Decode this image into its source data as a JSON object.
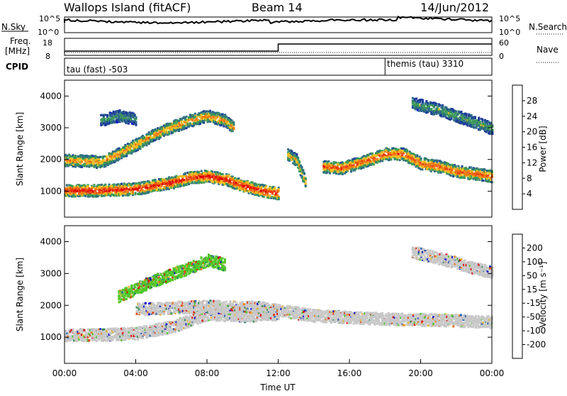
{
  "header": {
    "station": "Wallops Island (fitACF)",
    "beam": "Beam 14",
    "date": "14/Jun/2012"
  },
  "summary": {
    "nsky_label": "N.Sky",
    "nsky_ticks": [
      "10^5",
      "10^0"
    ],
    "nsearch_label": "N.Search",
    "nsearch_ticks": [
      "10^5",
      "10^0"
    ],
    "freq_label": "Freq.",
    "freq_unit": "[MHz]",
    "freq_ticks": [
      "18",
      "8"
    ],
    "nave_label": "Nave",
    "nave_ticks": [
      "60",
      "0"
    ],
    "cpid_label": "CPID",
    "cpid_modes": [
      {
        "name": "tau (fast) -503",
        "start_hour": 0
      },
      {
        "name": "themis (tau) 3310",
        "start_hour": 18
      }
    ]
  },
  "chart_data": [
    {
      "type": "heatmap",
      "panel": "Power",
      "xlabel": "",
      "ylabel": "Slant Range [km]",
      "xlim": [
        0,
        24
      ],
      "ylim": [
        180,
        4500
      ],
      "yticks": [
        1000,
        2000,
        3000,
        4000
      ],
      "colorbar": {
        "label": "Power [dB]",
        "ticks": [
          4,
          8,
          12,
          16,
          20,
          24,
          28
        ],
        "colors": [
          "#0000f0",
          "#1e3c9a",
          "#2e6e86",
          "#3d9a55",
          "#f0c020",
          "#f07c10",
          "#e84210",
          "#e00000"
        ]
      },
      "echo_bands": [
        {
          "name": "near-range layer",
          "points": [
            [
              0,
              1050
            ],
            [
              2,
              1050
            ],
            [
              4,
              1100
            ],
            [
              6,
              1300
            ],
            [
              7,
              1450
            ],
            [
              8,
              1500
            ],
            [
              9,
              1400
            ],
            [
              10,
              1200
            ],
            [
              11,
              1050
            ],
            [
              12,
              950
            ]
          ],
          "peak_db": 30
        },
        {
          "name": "rising layer",
          "points": [
            [
              0,
              2000
            ],
            [
              2,
              1950
            ],
            [
              3,
              2200
            ],
            [
              4,
              2500
            ],
            [
              5,
              2800
            ],
            [
              6,
              3050
            ],
            [
              7,
              3250
            ],
            [
              8,
              3400
            ],
            [
              9,
              3250
            ],
            [
              9.5,
              3000
            ]
          ],
          "peak_db": 22
        },
        {
          "name": "upper layer",
          "points": [
            [
              2,
              3250
            ],
            [
              3,
              3400
            ],
            [
              4,
              3300
            ]
          ],
          "peak_db": 12
        },
        {
          "name": "midnight-side layer",
          "points": [
            [
              14.5,
              1800
            ],
            [
              15.5,
              1750
            ],
            [
              17,
              2000
            ],
            [
              18,
              2200
            ],
            [
              19,
              2200
            ],
            [
              20,
              1900
            ],
            [
              21,
              1800
            ],
            [
              22,
              1650
            ],
            [
              24,
              1500
            ]
          ],
          "peak_db": 26
        },
        {
          "name": "late far layer",
          "points": [
            [
              19.5,
              3800
            ],
            [
              21,
              3600
            ],
            [
              22,
              3400
            ],
            [
              23,
              3200
            ],
            [
              24,
              3000
            ]
          ],
          "peak_db": 14
        },
        {
          "name": "ground scatter patch",
          "points": [
            [
              12.5,
              2200
            ],
            [
              13,
              2000
            ],
            [
              13.5,
              1300
            ]
          ],
          "peak_db": 20
        }
      ]
    },
    {
      "type": "heatmap",
      "panel": "Velocity",
      "xlabel": "Time UT",
      "ylabel": "Slant Range [km]",
      "xlim": [
        0,
        24
      ],
      "ylim": [
        180,
        4500
      ],
      "yticks": [
        1000,
        2000,
        3000,
        4000
      ],
      "xticks": [
        "00:00",
        "04:00",
        "08:00",
        "12:00",
        "16:00",
        "20:00",
        "00:00"
      ],
      "colorbar": {
        "label": "Velocity [m s⁻¹]",
        "ticks": [
          200,
          100,
          50,
          15,
          -15,
          -50,
          -100,
          -200
        ],
        "colors": [
          "#0000c8",
          "#1e5ab4",
          "#2a8a50",
          "#50c828",
          "#c8c8c8",
          "#e8b43c",
          "#f07814",
          "#e83c0a",
          "#e00000"
        ]
      },
      "echo_bands": [
        {
          "name": "ground scatter low",
          "points": [
            [
              0,
              1100
            ],
            [
              2,
              1100
            ],
            [
              4,
              1150
            ],
            [
              6,
              1350
            ],
            [
              8,
              1750
            ],
            [
              10,
              1700
            ],
            [
              12,
              1750
            ]
          ],
          "color": "gray"
        },
        {
          "name": "rising layer",
          "points": [
            [
              3,
              2300
            ],
            [
              5,
              2800
            ],
            [
              7,
              3200
            ],
            [
              8,
              3450
            ],
            [
              9,
              3300
            ]
          ],
          "color": "green"
        },
        {
          "name": "mid band gray",
          "points": [
            [
              4,
              1900
            ],
            [
              8,
              2000
            ],
            [
              11,
              1950
            ],
            [
              14,
              1700
            ],
            [
              18,
              1600
            ],
            [
              22,
              1550
            ],
            [
              24,
              1500
            ]
          ],
          "color": "gray"
        },
        {
          "name": "late far layer",
          "points": [
            [
              19.5,
              3700
            ],
            [
              21,
              3500
            ],
            [
              23,
              3200
            ],
            [
              24,
              3050
            ]
          ],
          "color": "gray"
        }
      ]
    }
  ]
}
